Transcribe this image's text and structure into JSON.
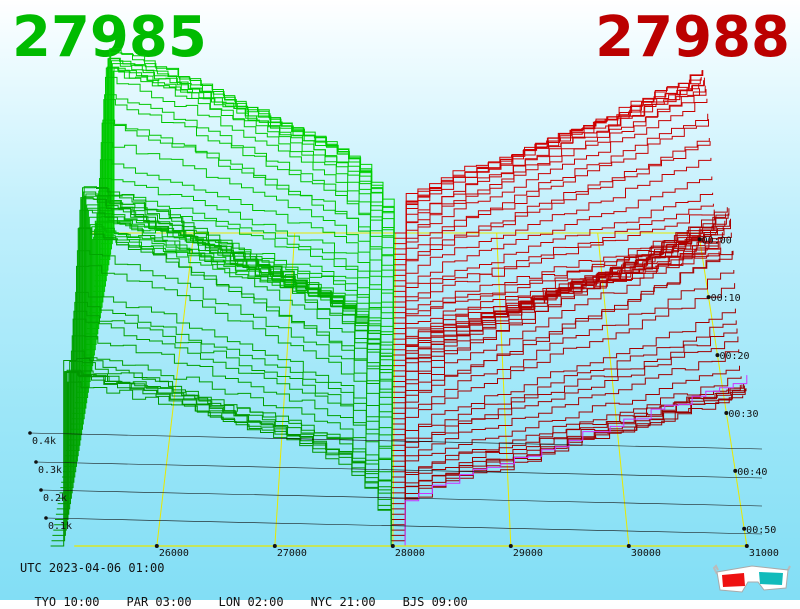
{
  "header": {
    "bid_price": "27985",
    "ask_price": "27988"
  },
  "footer": {
    "utc": "UTC 2023-04-06 01:00",
    "timezones": [
      {
        "city": "TYO",
        "time": "10:00"
      },
      {
        "city": "PAR",
        "time": "03:00"
      },
      {
        "city": "LON",
        "time": "02:00"
      },
      {
        "city": "NYC",
        "time": "21:00"
      },
      {
        "city": "BJS",
        "time": "09:00"
      }
    ]
  },
  "icons": {
    "anaglyph": "3d-glasses-icon"
  },
  "colors": {
    "bid": "#00bb00",
    "ask": "#bb0000",
    "grid": "#e8e800",
    "latest_ask": "#cc33ff"
  },
  "chart_data": {
    "type": "area",
    "x_axis": {
      "ticks": [
        26000,
        27000,
        28000,
        29000,
        30000,
        31000
      ],
      "range": [
        25000,
        31000
      ]
    },
    "y_axis": {
      "ticks": [
        "0.1k",
        "0.2k",
        "0.3k",
        "0.4k"
      ],
      "range": [
        0,
        0.5
      ]
    },
    "z_axis": {
      "ticks": [
        "00:00",
        "00:10",
        "00:20",
        "00:30",
        "00:40",
        "00:50"
      ]
    },
    "bid_price": 27985,
    "ask_price": 27988,
    "bid_depth_profile": [
      {
        "price": 25200,
        "cum": 0.42
      },
      {
        "price": 25500,
        "cum": 0.4
      },
      {
        "price": 26000,
        "cum": 0.36
      },
      {
        "price": 26500,
        "cum": 0.31
      },
      {
        "price": 27000,
        "cum": 0.26
      },
      {
        "price": 27300,
        "cum": 0.23
      },
      {
        "price": 27600,
        "cum": 0.19
      },
      {
        "price": 27850,
        "cum": 0.1
      },
      {
        "price": 27985,
        "cum": 0.0
      }
    ],
    "ask_depth_profile": [
      {
        "price": 27988,
        "cum": 0.0
      },
      {
        "price": 28100,
        "cum": 0.1
      },
      {
        "price": 28500,
        "cum": 0.15
      },
      {
        "price": 29000,
        "cum": 0.19
      },
      {
        "price": 29500,
        "cum": 0.24
      },
      {
        "price": 30000,
        "cum": 0.28
      },
      {
        "price": 30500,
        "cum": 0.33
      },
      {
        "price": 31000,
        "cum": 0.38
      }
    ],
    "snapshots": 60
  }
}
